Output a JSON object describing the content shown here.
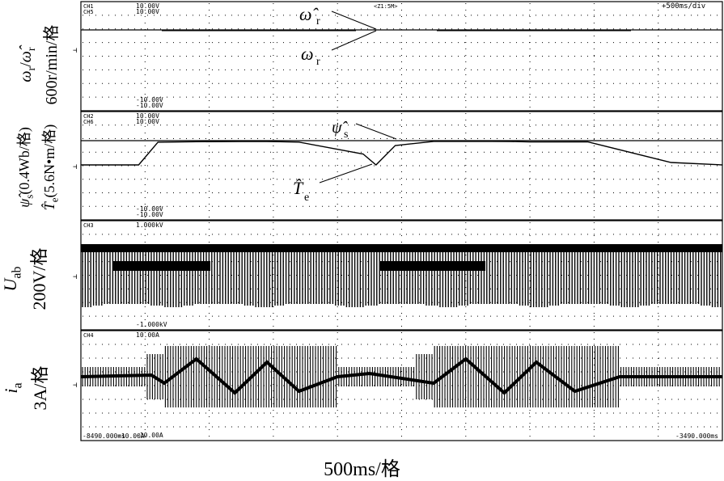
{
  "header": {
    "zoom": "<Z1:5M>",
    "timebase": "+500ms/div"
  },
  "x_axis": {
    "label": "500ms/格",
    "start": "-8490.000ms",
    "end": "-3490.000ms"
  },
  "panels": [
    {
      "id": "p1",
      "channels": [
        "CH1",
        "CH5"
      ],
      "top_values": [
        "10.00V",
        "10.00V"
      ],
      "bottom_values": [
        "-10.00V",
        "-10.00V"
      ],
      "ylabel_main": "ω",
      "ylabel_sub": "r",
      "ylabel_sep": "/",
      "ylabel_main2": "ω̂",
      "ylabel_sub2": "r",
      "ylabel_scale": "600r/min/格",
      "annotations": [
        {
          "symbol": "ω̂",
          "sub": "r"
        },
        {
          "symbol": "ω",
          "sub": "r"
        }
      ]
    },
    {
      "id": "p2",
      "channels": [
        "CH2",
        "CH6"
      ],
      "top_values": [
        "10.00V",
        "10.00V"
      ],
      "bottom_values": [
        "-10.00V",
        "-10.00V"
      ],
      "ylabel_line1_sym": "ψ̂",
      "ylabel_line1_sub": "s",
      "ylabel_line1_rest": "(0.4Wb/格)",
      "ylabel_line2_sym": "T̂",
      "ylabel_line2_sub": "e",
      "ylabel_line2_rest": "(5.6N•m/格)",
      "annotations": [
        {
          "symbol": "ψ̂",
          "sub": "s"
        },
        {
          "symbol": "T̂",
          "sub": "e"
        }
      ]
    },
    {
      "id": "p3",
      "channels": [
        "CH3"
      ],
      "top_values": [
        "1.000kV"
      ],
      "bottom_values": [
        "-1.000kV"
      ],
      "ylabel_sym": "U",
      "ylabel_sub": "ab",
      "ylabel_scale": "200V/格"
    },
    {
      "id": "p4",
      "channels": [
        "CH4"
      ],
      "top_values": [
        "10.00A"
      ],
      "bottom_values": [
        "-10.00A"
      ],
      "ylabel_sym": "i",
      "ylabel_sub": "a",
      "ylabel_scale": "3A/格"
    }
  ],
  "chart_data": {
    "type": "line",
    "x_unit": "ms",
    "x_range": [
      -8490,
      -3490
    ],
    "divisions": 10,
    "series": [
      {
        "name": "ω̂r",
        "x_div": [
          0,
          10
        ],
        "y_div": [
          0,
          0
        ]
      },
      {
        "name": "ωr",
        "x_div": [
          0,
          10
        ],
        "y_div": [
          0,
          0
        ]
      },
      {
        "name": "ψ̂s",
        "x_div": [
          0,
          10
        ],
        "y_div": [
          0,
          0
        ]
      },
      {
        "name": "T̂e",
        "x_div": [
          0,
          0.9,
          1.2,
          1.8,
          2.5,
          2.9,
          3.1,
          3.4,
          4.4,
          4.6,
          4.9,
          5.5,
          6.4,
          6.7,
          7.0,
          7.9,
          9.2,
          10
        ],
        "y_div": [
          -1,
          -1,
          0.05,
          0.35,
          0.52,
          0.5,
          0.35,
          0.1,
          -0.55,
          -1,
          -0.2,
          0.55,
          0.55,
          0.5,
          0.2,
          -0.05,
          -0.9,
          -1
        ]
      },
      {
        "name": "Uab",
        "envelope": "PWM switching ±"
      },
      {
        "name": "ia",
        "envelope": "sinusoidal bursts"
      }
    ]
  }
}
